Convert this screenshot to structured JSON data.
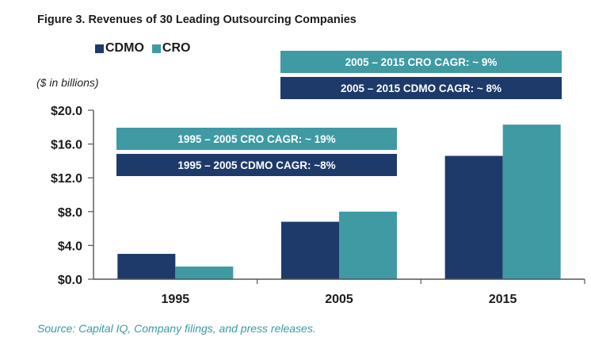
{
  "figure_title": "Figure 3. Revenues of 30 Leading Outsourcing Companies",
  "units_label": "($ in billions)",
  "source": "Source: Capital IQ, Company filings, and press releases.",
  "colors": {
    "cdmo": "#1e3a6a",
    "cro": "#3f9aa3"
  },
  "legend": [
    {
      "label": "CDMO",
      "color": "#1e3a6a"
    },
    {
      "label": "CRO",
      "color": "#3f9aa3"
    }
  ],
  "annotations": {
    "cro_2005_2015": "2005 – 2015 CRO CAGR: ~ 9%",
    "cdmo_2005_2015": "2005 – 2015 CDMO CAGR: ~ 8%",
    "cro_1995_2005": "1995 – 2005 CRO CAGR: ~ 19%",
    "cdmo_1995_2005": "1995 – 2005 CDMO CAGR: ~8%"
  },
  "chart_data": {
    "type": "bar",
    "categories": [
      "1995",
      "2005",
      "2015"
    ],
    "series": [
      {
        "name": "CDMO",
        "values": [
          3.0,
          6.8,
          14.6
        ]
      },
      {
        "name": "CRO",
        "values": [
          1.5,
          8.0,
          18.3
        ]
      }
    ],
    "ylim": [
      0,
      20
    ],
    "yticks": [
      0,
      4,
      8,
      12,
      16,
      20
    ],
    "ytick_labels": [
      "$0.0",
      "$4.0",
      "$8.0",
      "$12.0",
      "$16.0",
      "$20.0"
    ],
    "ylabel": "($ in billions)",
    "xlabel": "",
    "title": "Figure 3. Revenues of 30 Leading Outsourcing Companies",
    "grid": false,
    "legend_position": "top-left"
  }
}
